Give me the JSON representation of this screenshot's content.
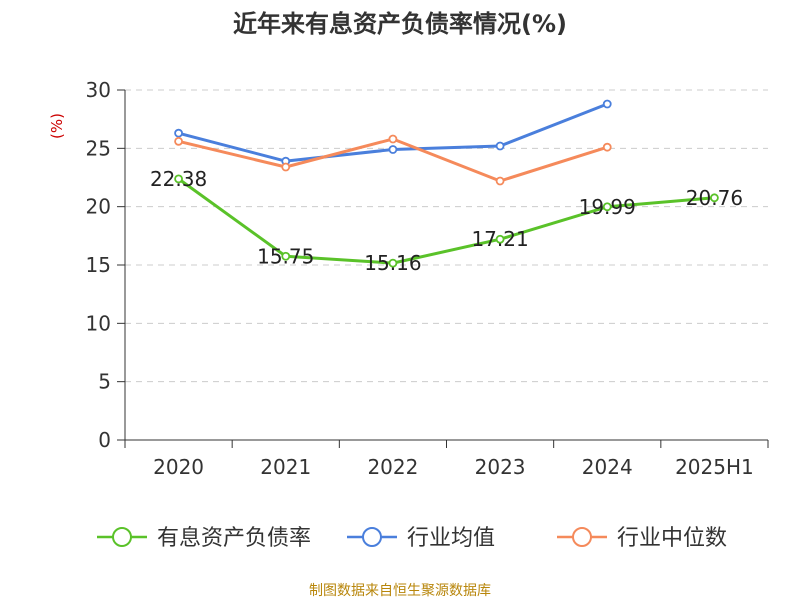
{
  "chart_data": {
    "type": "line",
    "title": "近年来有息资产负债率情况(%)",
    "ylabel": "(%)",
    "categories": [
      "2020",
      "2021",
      "2022",
      "2023",
      "2024",
      "2025H1"
    ],
    "ylim": [
      0,
      30
    ],
    "yticks": [
      0,
      5,
      10,
      15,
      20,
      25,
      30
    ],
    "grid": true,
    "legend_position": "bottom",
    "series": [
      {
        "name": "有息资产负债率",
        "color": "#5ac229",
        "values": [
          22.38,
          15.75,
          15.16,
          17.21,
          19.99,
          20.76
        ],
        "labels": [
          "22.38",
          "15.75",
          "15.16",
          "17.21",
          "19.99",
          "20.76"
        ]
      },
      {
        "name": "行业均值",
        "color": "#4a7fdc",
        "values": [
          26.3,
          23.9,
          24.9,
          25.2,
          28.8,
          null
        ]
      },
      {
        "name": "行业中位数",
        "color": "#f58a5b",
        "values": [
          25.6,
          23.4,
          25.8,
          22.2,
          25.1,
          null
        ]
      }
    ]
  },
  "source": "制图数据来自恒生聚源数据库"
}
